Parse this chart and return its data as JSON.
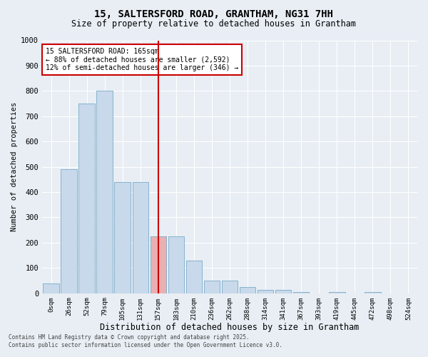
{
  "title": "15, SALTERSFORD ROAD, GRANTHAM, NG31 7HH",
  "subtitle": "Size of property relative to detached houses in Grantham",
  "xlabel": "Distribution of detached houses by size in Grantham",
  "ylabel": "Number of detached properties",
  "bar_color": "#c8d9eb",
  "bar_edge_color": "#7aaac8",
  "highlight_color": "#cc0000",
  "categories": [
    "0sqm",
    "26sqm",
    "52sqm",
    "79sqm",
    "105sqm",
    "131sqm",
    "157sqm",
    "183sqm",
    "210sqm",
    "236sqm",
    "262sqm",
    "288sqm",
    "314sqm",
    "341sqm",
    "367sqm",
    "393sqm",
    "419sqm",
    "445sqm",
    "472sqm",
    "498sqm",
    "524sqm"
  ],
  "values": [
    40,
    490,
    750,
    800,
    440,
    440,
    225,
    225,
    130,
    50,
    50,
    25,
    12,
    12,
    5,
    0,
    5,
    0,
    5,
    0,
    0
  ],
  "ylim": [
    0,
    1000
  ],
  "yticks": [
    0,
    100,
    200,
    300,
    400,
    500,
    600,
    700,
    800,
    900,
    1000
  ],
  "annotation_text": "15 SALTERSFORD ROAD: 165sqm\n← 88% of detached houses are smaller (2,592)\n12% of semi-detached houses are larger (346) →",
  "annotation_box_color": "#ffffff",
  "annotation_box_edge": "#cc0000",
  "vline_x_index": 6,
  "footer1": "Contains HM Land Registry data © Crown copyright and database right 2025.",
  "footer2": "Contains public sector information licensed under the Open Government Licence v3.0.",
  "background_color": "#e8eef4",
  "grid_color": "#ffffff",
  "bar_highlight_color": "#e8b0b0"
}
